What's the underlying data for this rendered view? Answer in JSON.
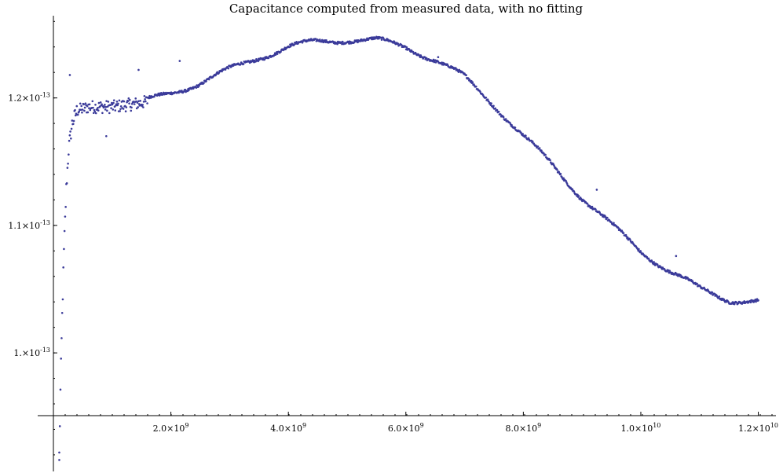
{
  "chart_data": {
    "type": "scatter",
    "title": "Capacitance computed from measured data, with no fitting",
    "xlabel": "",
    "ylabel": "",
    "xlim": [
      0,
      12300000000
    ],
    "ylim": [
      9.07e-14,
      1.2645e-13
    ],
    "x_ticks": [
      {
        "value": 2000000000,
        "mantissa": "2.0",
        "exponent": "9"
      },
      {
        "value": 4000000000,
        "mantissa": "4.0",
        "exponent": "9"
      },
      {
        "value": 6000000000,
        "mantissa": "6.0",
        "exponent": "9"
      },
      {
        "value": 8000000000,
        "mantissa": "8.0",
        "exponent": "9"
      },
      {
        "value": 10000000000,
        "mantissa": "1.0",
        "exponent": "10"
      },
      {
        "value": 12000000000,
        "mantissa": "1.2",
        "exponent": "10"
      }
    ],
    "y_ticks": [
      {
        "value": 1e-13,
        "mantissa": "1.",
        "exponent": "-13"
      },
      {
        "value": 1.1e-13,
        "mantissa": "1.1",
        "exponent": "-13"
      },
      {
        "value": 1.2e-13,
        "mantissa": "1.2",
        "exponent": "-13"
      }
    ],
    "trend": [
      {
        "x": 100000000,
        "y": 9.2e-14
      },
      {
        "x": 120000000,
        "y": 9.7e-14
      },
      {
        "x": 150000000,
        "y": 1.03e-13
      },
      {
        "x": 180000000,
        "y": 1.08e-13
      },
      {
        "x": 220000000,
        "y": 1.13e-13
      },
      {
        "x": 260000000,
        "y": 1.16e-13
      },
      {
        "x": 320000000,
        "y": 1.18e-13
      },
      {
        "x": 400000000,
        "y": 1.19e-13
      },
      {
        "x": 600000000,
        "y": 1.193e-13
      },
      {
        "x": 1000000000,
        "y": 1.193e-13
      },
      {
        "x": 1500000000,
        "y": 1.196e-13
      },
      {
        "x": 2000000000,
        "y": 1.204e-13
      },
      {
        "x": 2500000000,
        "y": 1.212e-13
      },
      {
        "x": 3000000000,
        "y": 1.222e-13
      },
      {
        "x": 3500000000,
        "y": 1.232e-13
      },
      {
        "x": 4000000000,
        "y": 1.24e-13
      },
      {
        "x": 4500000000,
        "y": 1.244e-13
      },
      {
        "x": 5000000000,
        "y": 1.246e-13
      },
      {
        "x": 5500000000,
        "y": 1.245e-13
      },
      {
        "x": 6000000000,
        "y": 1.24e-13
      },
      {
        "x": 6500000000,
        "y": 1.23e-13
      },
      {
        "x": 7000000000,
        "y": 1.216e-13
      },
      {
        "x": 7500000000,
        "y": 1.195e-13
      },
      {
        "x": 8000000000,
        "y": 1.17e-13
      },
      {
        "x": 8500000000,
        "y": 1.147e-13
      },
      {
        "x": 9000000000,
        "y": 1.122e-13
      },
      {
        "x": 9500000000,
        "y": 1.1e-13
      },
      {
        "x": 10000000000,
        "y": 1.08e-13
      },
      {
        "x": 10500000000,
        "y": 1.064e-13
      },
      {
        "x": 11000000000,
        "y": 1.05e-13
      },
      {
        "x": 11500000000,
        "y": 1.042e-13
      },
      {
        "x": 12000000000,
        "y": 1.04e-13
      }
    ],
    "outliers": [
      {
        "x": 100000000,
        "y": 9.16e-14
      },
      {
        "x": 280000000,
        "y": 1.218e-13
      },
      {
        "x": 900000000,
        "y": 1.17e-13
      },
      {
        "x": 1450000000,
        "y": 1.222e-13
      },
      {
        "x": 2150000000,
        "y": 1.229e-13
      },
      {
        "x": 6550000000,
        "y": 1.232e-13
      },
      {
        "x": 9250000000,
        "y": 1.128e-13
      },
      {
        "x": 10600000000,
        "y": 1.076e-13
      }
    ],
    "grid": false,
    "legend": "none"
  }
}
